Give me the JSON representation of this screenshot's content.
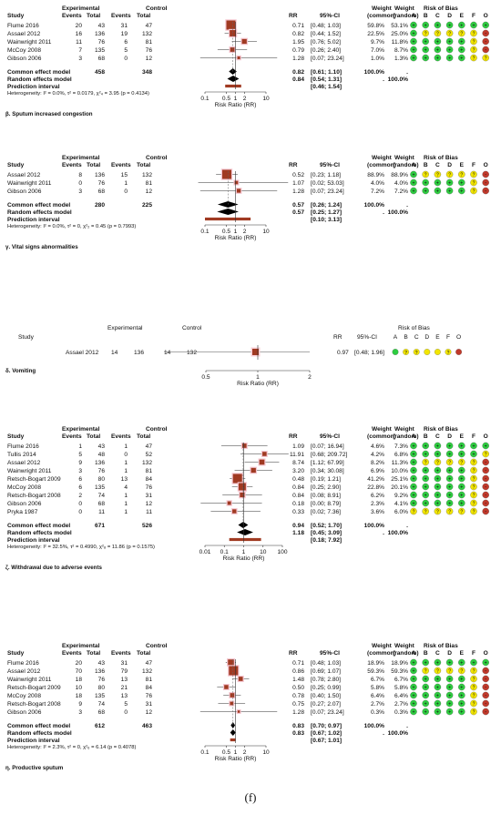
{
  "caption": "(f)",
  "colors": {
    "green": "#2ecc40",
    "yellow": "#f2e500",
    "red": "#c0392b",
    "square": "#a03a22",
    "diamond": "#000000",
    "pred_bar": "#a03a22",
    "bias_fill": "#111111"
  },
  "headers": {
    "study": "Study",
    "experimental": "Experimental",
    "control": "Control",
    "events": "Events",
    "total": "Total",
    "rr": "RR",
    "ci": "95%-CI",
    "weight": "Weight",
    "common": "(common)",
    "random": "(random)",
    "risk_of_bias": "Risk of Bias",
    "bias_letters": [
      "A",
      "B",
      "C",
      "D",
      "E",
      "F",
      "O"
    ],
    "axis_label": "Risk Ratio (RR)"
  },
  "panels": [
    {
      "label": "",
      "studies": [
        {
          "study": "Flume 2016",
          "e_ev": "20",
          "e_tot": "43",
          "c_ev": "31",
          "c_tot": "47",
          "rr": 0.71,
          "lo": 0.48,
          "hi": 1.03,
          "rr_text": "0.71",
          "ci_text": "[0.48; 1.03]",
          "w_common": "59.8%",
          "w_random": "53.1%",
          "bias": "GGGGGGG"
        },
        {
          "study": "Assael 2012",
          "e_ev": "16",
          "e_tot": "136",
          "c_ev": "19",
          "c_tot": "132",
          "rr": 0.82,
          "lo": 0.44,
          "hi": 1.52,
          "rr_text": "0.82",
          "ci_text": "[0.44; 1.52]",
          "w_common": "22.5%",
          "w_random": "25.0%",
          "bias": "GY?YYYR"
        },
        {
          "study": "Wainwright 2011",
          "e_ev": "11",
          "e_tot": "76",
          "c_ev": "6",
          "c_tot": "81",
          "rr": 1.95,
          "lo": 0.76,
          "hi": 5.02,
          "rr_text": "1.95",
          "ci_text": "[0.76; 5.02]",
          "w_common": "9.7%",
          "w_random": "11.8%",
          "bias": "GGGGGYR"
        },
        {
          "study": "McCoy 2008",
          "e_ev": "7",
          "e_tot": "135",
          "c_ev": "5",
          "c_tot": "76",
          "rr": 0.79,
          "lo": 0.26,
          "hi": 2.4,
          "rr_text": "0.79",
          "ci_text": "[0.26; 2.40]",
          "w_common": "7.0%",
          "w_random": "8.7%",
          "bias": "GGGGGYR"
        },
        {
          "study": "Gibson 2006",
          "e_ev": "3",
          "e_tot": "68",
          "c_ev": "0",
          "c_tot": "12",
          "rr": 1.28,
          "lo": 0.07,
          "hi": 23.24,
          "rr_text": "1.28",
          "ci_text": "[0.07; 23.24]",
          "w_common": "1.0%",
          "w_random": "1.3%",
          "bias": "GGGGGYY"
        }
      ],
      "common": {
        "label": "Common effect model",
        "e_tot": "458",
        "c_tot": "348",
        "rr": 0.82,
        "lo": 0.61,
        "hi": 1.1,
        "rr_text": "0.82",
        "ci_text": "[0.61; 1.10]",
        "w_common": "100.0%",
        "w_random": "."
      },
      "random": {
        "label": "Random effects model",
        "rr": 0.84,
        "lo": 0.54,
        "hi": 1.31,
        "rr_text": "0.84",
        "ci_text": "[0.54; 1.31]",
        "w_common": ".",
        "w_random": "100.0%"
      },
      "prediction": {
        "label": "Prediction interval",
        "lo": 0.46,
        "hi": 1.54,
        "ci_text": "[0.46; 1.54]"
      },
      "heterogeneity": "Heterogeneity: I² = 0.0%, τ² = 0.0179, χ²₄ = 3.95 (p = 0.4134)",
      "ticks": [
        "0.1",
        "0.5",
        "1",
        "2",
        "10"
      ],
      "title": "β. Sputum increased congestion"
    },
    {
      "label": "",
      "studies": [
        {
          "study": "Assael 2012",
          "e_ev": "8",
          "e_tot": "136",
          "c_ev": "15",
          "c_tot": "132",
          "rr": 0.52,
          "lo": 0.23,
          "hi": 1.18,
          "rr_text": "0.52",
          "ci_text": "[0.23; 1.18]",
          "w_common": "88.9%",
          "w_random": "88.9%",
          "bias": "GY?YYYR"
        },
        {
          "study": "Wainwright 2011",
          "e_ev": "0",
          "e_tot": "76",
          "c_ev": "1",
          "c_tot": "81",
          "rr": 1.07,
          "lo": 0.02,
          "hi": 53.03,
          "rr_text": "1.07",
          "ci_text": "[0.02; 53.03]",
          "w_common": "4.0%",
          "w_random": "4.0%",
          "bias": "GGGGGYR"
        },
        {
          "study": "Gibson 2006",
          "e_ev": "3",
          "e_tot": "68",
          "c_ev": "0",
          "c_tot": "12",
          "rr": 1.28,
          "lo": 0.07,
          "hi": 23.24,
          "rr_text": "1.28",
          "ci_text": "[0.07; 23.24]",
          "w_common": "7.2%",
          "w_random": "7.2%",
          "bias": "GGGGGYR"
        }
      ],
      "common": {
        "label": "Common effect model",
        "e_tot": "280",
        "c_tot": "225",
        "rr": 0.57,
        "lo": 0.26,
        "hi": 1.24,
        "rr_text": "0.57",
        "ci_text": "[0.26; 1.24]",
        "w_common": "100.0%",
        "w_random": "."
      },
      "random": {
        "label": "Random effects model",
        "rr": 0.57,
        "lo": 0.25,
        "hi": 1.27,
        "rr_text": "0.57",
        "ci_text": "[0.25; 1.27]",
        "w_common": ".",
        "w_random": "100.0%"
      },
      "prediction": {
        "label": "Prediction interval",
        "lo": 0.1,
        "hi": 3.13,
        "ci_text": "[0.10; 3.13]"
      },
      "heterogeneity": "Heterogeneity: I² = 0.0%, τ² = 0, χ²₂ = 0.45 (p = 0.7993)",
      "ticks": [
        "0.1",
        "0.5",
        "1",
        "2",
        "10"
      ],
      "title": "γ. Vital signs abnormalities"
    },
    {
      "label": "",
      "studies": [
        {
          "study": "Assael 2012",
          "e_ev": "14",
          "e_tot": "136",
          "c_ev": "14",
          "c_tot": "132",
          "rr": 0.97,
          "lo": 0.48,
          "hi": 1.96,
          "rr_text": "0.97",
          "ci_text": "[0.48; 1.96]",
          "w_common": "",
          "w_random": "",
          "bias": "G??YY?R"
        }
      ],
      "ticks": [
        "0.5",
        "1",
        "2"
      ],
      "title": "δ. Vomiting"
    },
    {
      "label": "",
      "studies": [
        {
          "study": "Flume 2016",
          "e_ev": "1",
          "e_tot": "43",
          "c_ev": "1",
          "c_tot": "47",
          "rr": 1.09,
          "lo": 0.07,
          "hi": 16.94,
          "rr_text": "1.09",
          "ci_text": "[0.07; 16.94]",
          "w_common": "4.6%",
          "w_random": "7.3%",
          "bias": "GGGGGGG"
        },
        {
          "study": "Tullis 2014",
          "e_ev": "5",
          "e_tot": "48",
          "c_ev": "0",
          "c_tot": "52",
          "rr": 11.91,
          "lo": 0.68,
          "hi": 209.72,
          "rr_text": "11.91",
          "ci_text": "[0.68; 209.72]",
          "w_common": "4.2%",
          "w_random": "6.8%",
          "bias": "GGGGGGY"
        },
        {
          "study": "Assael 2012",
          "e_ev": "9",
          "e_tot": "136",
          "c_ev": "1",
          "c_tot": "132",
          "rr": 8.74,
          "lo": 1.12,
          "hi": 67.99,
          "rr_text": "8.74",
          "ci_text": "[1.12; 67.99]",
          "w_common": "8.2%",
          "w_random": "11.3%",
          "bias": "GY?YYYR"
        },
        {
          "study": "Wainwright 2011",
          "e_ev": "3",
          "e_tot": "76",
          "c_ev": "1",
          "c_tot": "81",
          "rr": 3.2,
          "lo": 0.34,
          "hi": 30.08,
          "rr_text": "3.20",
          "ci_text": "[0.34; 30.08]",
          "w_common": "6.9%",
          "w_random": "10.0%",
          "bias": "GGGGGYR"
        },
        {
          "study": "Retsch-Bogart 2009",
          "e_ev": "6",
          "e_tot": "80",
          "c_ev": "13",
          "c_tot": "84",
          "rr": 0.48,
          "lo": 0.19,
          "hi": 1.21,
          "rr_text": "0.48",
          "ci_text": "[0.19; 1.21]",
          "w_common": "41.2%",
          "w_random": "25.1%",
          "bias": "GGGGGYR"
        },
        {
          "study": "McCoy 2008",
          "e_ev": "6",
          "e_tot": "135",
          "c_ev": "4",
          "c_tot": "76",
          "rr": 0.84,
          "lo": 0.25,
          "hi": 2.9,
          "rr_text": "0.84",
          "ci_text": "[0.25; 2.90]",
          "w_common": "22.8%",
          "w_random": "20.1%",
          "bias": "GGGGGYR"
        },
        {
          "study": "Retsch-Bogart 2008",
          "e_ev": "2",
          "e_tot": "74",
          "c_ev": "1",
          "c_tot": "31",
          "rr": 0.84,
          "lo": 0.08,
          "hi": 8.91,
          "rr_text": "0.84",
          "ci_text": "[0.08; 8.91]",
          "w_common": "6.2%",
          "w_random": "9.2%",
          "bias": "GGGGGYR"
        },
        {
          "study": "Gibson 2006",
          "e_ev": "0",
          "e_tot": "68",
          "c_ev": "1",
          "c_tot": "12",
          "rr": 0.18,
          "lo": 0.0,
          "hi": 8.79,
          "rr_text": "0.18",
          "ci_text": "[0.00; 8.79]",
          "w_common": "2.3%",
          "w_random": "4.1%",
          "bias": "GGGGGYR"
        },
        {
          "study": "Pryka 1987",
          "e_ev": "0",
          "e_tot": "11",
          "c_ev": "1",
          "c_tot": "11",
          "rr": 0.33,
          "lo": 0.02,
          "hi": 7.36,
          "rr_text": "0.33",
          "ci_text": "[0.02; 7.36]",
          "w_common": "3.6%",
          "w_random": "6.0%",
          "bias": "YY?YYYR"
        }
      ],
      "common": {
        "label": "Common effect model",
        "e_tot": "671",
        "c_tot": "526",
        "rr": 0.94,
        "lo": 0.52,
        "hi": 1.7,
        "rr_text": "0.94",
        "ci_text": "[0.52; 1.70]",
        "w_common": "100.0%",
        "w_random": "."
      },
      "random": {
        "label": "Random effects model",
        "rr": 1.18,
        "lo": 0.45,
        "hi": 3.09,
        "rr_text": "1.18",
        "ci_text": "[0.45; 3.09]",
        "w_common": ".",
        "w_random": "100.0%"
      },
      "prediction": {
        "label": "Prediction interval",
        "lo": 0.18,
        "hi": 7.92,
        "ci_text": "[0.18; 7.92]"
      },
      "heterogeneity": "Heterogeneity: I² = 32.5%, τ² = 0.4990, χ²₈ = 11.86 (p = 0.1575)",
      "ticks": [
        "0.01",
        "0.1",
        "1",
        "10",
        "100"
      ],
      "title": "ζ. Withdrawal due to adverse events"
    },
    {
      "label": "",
      "studies": [
        {
          "study": "Flume 2016",
          "e_ev": "20",
          "e_tot": "43",
          "c_ev": "31",
          "c_tot": "47",
          "rr": 0.71,
          "lo": 0.48,
          "hi": 1.03,
          "rr_text": "0.71",
          "ci_text": "[0.48; 1.03]",
          "w_common": "18.9%",
          "w_random": "18.9%",
          "bias": "GGGGGGG"
        },
        {
          "study": "Assael 2012",
          "e_ev": "70",
          "e_tot": "136",
          "c_ev": "79",
          "c_tot": "132",
          "rr": 0.86,
          "lo": 0.69,
          "hi": 1.07,
          "rr_text": "0.86",
          "ci_text": "[0.69; 1.07]",
          "w_common": "59.3%",
          "w_random": "59.3%",
          "bias": "GY?YYYR"
        },
        {
          "study": "Wainwright 2011",
          "e_ev": "18",
          "e_tot": "76",
          "c_ev": "13",
          "c_tot": "81",
          "rr": 1.48,
          "lo": 0.78,
          "hi": 2.8,
          "rr_text": "1.48",
          "ci_text": "[0.78; 2.80]",
          "w_common": "6.7%",
          "w_random": "6.7%",
          "bias": "GGGGGYR"
        },
        {
          "study": "Retsch-Bogart 2009",
          "e_ev": "10",
          "e_tot": "80",
          "c_ev": "21",
          "c_tot": "84",
          "rr": 0.5,
          "lo": 0.25,
          "hi": 0.99,
          "rr_text": "0.50",
          "ci_text": "[0.25; 0.99]",
          "w_common": "5.8%",
          "w_random": "5.8%",
          "bias": "GGGGGYR"
        },
        {
          "study": "McCoy 2008",
          "e_ev": "18",
          "e_tot": "135",
          "c_ev": "13",
          "c_tot": "76",
          "rr": 0.78,
          "lo": 0.4,
          "hi": 1.5,
          "rr_text": "0.78",
          "ci_text": "[0.40; 1.50]",
          "w_common": "6.4%",
          "w_random": "6.4%",
          "bias": "GGGGGYR"
        },
        {
          "study": "Retsch-Bogart 2008",
          "e_ev": "9",
          "e_tot": "74",
          "c_ev": "5",
          "c_tot": "31",
          "rr": 0.75,
          "lo": 0.27,
          "hi": 2.07,
          "rr_text": "0.75",
          "ci_text": "[0.27; 2.07]",
          "w_common": "2.7%",
          "w_random": "2.7%",
          "bias": "GGGGGYR"
        },
        {
          "study": "Gibson 2006",
          "e_ev": "3",
          "e_tot": "68",
          "c_ev": "0",
          "c_tot": "12",
          "rr": 1.28,
          "lo": 0.07,
          "hi": 23.24,
          "rr_text": "1.28",
          "ci_text": "[0.07; 23.24]",
          "w_common": "0.3%",
          "w_random": "0.3%",
          "bias": "GGGGGYR"
        }
      ],
      "common": {
        "label": "Common effect model",
        "e_tot": "612",
        "c_tot": "463",
        "rr": 0.83,
        "lo": 0.7,
        "hi": 0.97,
        "rr_text": "0.83",
        "ci_text": "[0.70; 0.97]",
        "w_common": "100.0%",
        "w_random": "."
      },
      "random": {
        "label": "Random effects model",
        "rr": 0.83,
        "lo": 0.67,
        "hi": 1.02,
        "rr_text": "0.83",
        "ci_text": "[0.67; 1.02]",
        "w_common": ".",
        "w_random": "100.0%"
      },
      "prediction": {
        "label": "Prediction interval",
        "lo": 0.67,
        "hi": 1.01,
        "ci_text": "[0.67; 1.01]"
      },
      "heterogeneity": "Heterogeneity: I² = 2.3%, τ² = 0, χ²₆ = 6.14 (p = 0.4078)",
      "ticks": [
        "0.1",
        "0.5",
        "1",
        "2",
        "10"
      ],
      "title": "η. Productive sputum"
    }
  ],
  "chart_data": [
    {
      "type": "forest",
      "title": "β. Sputum increased congestion",
      "xlabel": "Risk Ratio (RR)",
      "xscale": "log",
      "categories": [
        "Flume 2016",
        "Assael 2012",
        "Wainwright 2011",
        "McCoy 2008",
        "Gibson 2006"
      ],
      "series": [
        {
          "name": "RR",
          "values": [
            0.71,
            0.82,
            1.95,
            0.79,
            1.28
          ]
        }
      ],
      "ci_low": [
        0.48,
        0.44,
        0.76,
        0.26,
        0.07
      ],
      "ci_high": [
        1.03,
        1.52,
        5.02,
        2.4,
        23.24
      ],
      "pooled_common": [
        0.82,
        0.61,
        1.1
      ],
      "pooled_random": [
        0.84,
        0.54,
        1.31
      ],
      "prediction": [
        0.46,
        1.54
      ]
    },
    {
      "type": "forest",
      "title": "γ. Vital signs abnormalities",
      "xlabel": "Risk Ratio (RR)",
      "xscale": "log",
      "categories": [
        "Assael 2012",
        "Wainwright 2011",
        "Gibson 2006"
      ],
      "series": [
        {
          "name": "RR",
          "values": [
            0.52,
            1.07,
            1.28
          ]
        }
      ],
      "ci_low": [
        0.23,
        0.02,
        0.07
      ],
      "ci_high": [
        1.18,
        53.03,
        23.24
      ],
      "pooled_common": [
        0.57,
        0.26,
        1.24
      ],
      "pooled_random": [
        0.57,
        0.25,
        1.27
      ],
      "prediction": [
        0.1,
        3.13
      ]
    },
    {
      "type": "forest",
      "title": "δ. Vomiting",
      "xlabel": "Risk Ratio (RR)",
      "xscale": "log",
      "categories": [
        "Assael 2012"
      ],
      "series": [
        {
          "name": "RR",
          "values": [
            0.97
          ]
        }
      ],
      "ci_low": [
        0.48
      ],
      "ci_high": [
        1.96
      ]
    },
    {
      "type": "forest",
      "title": "ζ. Withdrawal due to adverse events",
      "xlabel": "Risk Ratio (RR)",
      "xscale": "log",
      "categories": [
        "Flume 2016",
        "Tullis 2014",
        "Assael 2012",
        "Wainwright 2011",
        "Retsch-Bogart 2009",
        "McCoy 2008",
        "Retsch-Bogart 2008",
        "Gibson 2006",
        "Pryka 1987"
      ],
      "series": [
        {
          "name": "RR",
          "values": [
            1.09,
            11.91,
            8.74,
            3.2,
            0.48,
            0.84,
            0.84,
            0.18,
            0.33
          ]
        }
      ],
      "ci_low": [
        0.07,
        0.68,
        1.12,
        0.34,
        0.19,
        0.25,
        0.08,
        0.0,
        0.02
      ],
      "ci_high": [
        16.94,
        209.72,
        67.99,
        30.08,
        1.21,
        2.9,
        8.91,
        8.79,
        7.36
      ],
      "pooled_common": [
        0.94,
        0.52,
        1.7
      ],
      "pooled_random": [
        1.18,
        0.45,
        3.09
      ],
      "prediction": [
        0.18,
        7.92
      ]
    },
    {
      "type": "forest",
      "title": "η. Productive sputum",
      "xlabel": "Risk Ratio (RR)",
      "xscale": "log",
      "categories": [
        "Flume 2016",
        "Assael 2012",
        "Wainwright 2011",
        "Retsch-Bogart 2009",
        "McCoy 2008",
        "Retsch-Bogart 2008",
        "Gibson 2006"
      ],
      "series": [
        {
          "name": "RR",
          "values": [
            0.71,
            0.86,
            1.48,
            0.5,
            0.78,
            0.75,
            1.28
          ]
        }
      ],
      "ci_low": [
        0.48,
        0.69,
        0.78,
        0.25,
        0.4,
        0.27,
        0.07
      ],
      "ci_high": [
        1.03,
        1.07,
        2.8,
        0.99,
        1.5,
        2.07,
        23.24
      ],
      "pooled_common": [
        0.83,
        0.7,
        0.97
      ],
      "pooled_random": [
        0.83,
        0.67,
        1.02
      ],
      "prediction": [
        0.67,
        1.01
      ]
    }
  ]
}
